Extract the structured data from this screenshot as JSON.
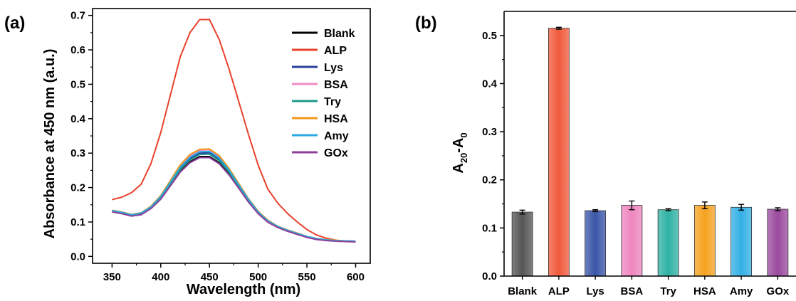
{
  "chart_data": [
    {
      "type": "line",
      "panel_label": "(a)",
      "xlabel": "Wavelength (nm)",
      "ylabel": "Absorbance at 450 nm (a.u.)",
      "xlim": [
        330,
        615
      ],
      "ylim": [
        -0.02,
        0.72
      ],
      "xticks": [
        350,
        400,
        450,
        500,
        550,
        600
      ],
      "yticks": [
        0.0,
        0.1,
        0.2,
        0.3,
        0.4,
        0.5,
        0.6,
        0.7
      ],
      "xtick_labels": [
        "350",
        "400",
        "450",
        "500",
        "550",
        "600"
      ],
      "ytick_labels": [
        "0.0",
        "0.1",
        "0.2",
        "0.3",
        "0.4",
        "0.5",
        "0.6",
        "0.7"
      ],
      "legend_position": "top-right",
      "x": [
        350,
        360,
        370,
        380,
        390,
        400,
        410,
        420,
        430,
        440,
        450,
        460,
        470,
        480,
        490,
        500,
        510,
        520,
        530,
        540,
        550,
        560,
        570,
        580,
        590,
        600
      ],
      "series": [
        {
          "name": "Blank",
          "color": "#000000",
          "values": [
            0.13,
            0.125,
            0.118,
            0.122,
            0.14,
            0.168,
            0.208,
            0.248,
            0.275,
            0.29,
            0.29,
            0.272,
            0.24,
            0.2,
            0.16,
            0.125,
            0.1,
            0.085,
            0.074,
            0.065,
            0.056,
            0.05,
            0.047,
            0.045,
            0.044,
            0.043
          ]
        },
        {
          "name": "ALP",
          "color": "#e8412b",
          "values": [
            0.165,
            0.172,
            0.185,
            0.21,
            0.27,
            0.36,
            0.47,
            0.58,
            0.65,
            0.688,
            0.688,
            0.63,
            0.545,
            0.45,
            0.355,
            0.265,
            0.195,
            0.155,
            0.125,
            0.1,
            0.078,
            0.062,
            0.053,
            0.047,
            0.044,
            0.043
          ]
        },
        {
          "name": "Lys",
          "color": "#2a3f9e",
          "values": [
            0.132,
            0.127,
            0.12,
            0.125,
            0.143,
            0.172,
            0.214,
            0.256,
            0.284,
            0.3,
            0.301,
            0.282,
            0.248,
            0.206,
            0.164,
            0.128,
            0.102,
            0.086,
            0.075,
            0.066,
            0.057,
            0.051,
            0.048,
            0.046,
            0.045,
            0.044
          ]
        },
        {
          "name": "BSA",
          "color": "#f08cc4",
          "values": [
            0.133,
            0.128,
            0.121,
            0.126,
            0.145,
            0.175,
            0.218,
            0.262,
            0.292,
            0.308,
            0.31,
            0.29,
            0.254,
            0.21,
            0.167,
            0.13,
            0.104,
            0.087,
            0.076,
            0.067,
            0.058,
            0.052,
            0.048,
            0.046,
            0.045,
            0.044
          ]
        },
        {
          "name": "Try",
          "color": "#1e9a8a",
          "values": [
            0.131,
            0.126,
            0.119,
            0.124,
            0.142,
            0.17,
            0.211,
            0.252,
            0.28,
            0.296,
            0.297,
            0.278,
            0.245,
            0.204,
            0.162,
            0.127,
            0.101,
            0.086,
            0.075,
            0.066,
            0.057,
            0.051,
            0.048,
            0.046,
            0.045,
            0.044
          ]
        },
        {
          "name": "HSA",
          "color": "#f3961c",
          "values": [
            0.134,
            0.129,
            0.122,
            0.127,
            0.146,
            0.177,
            0.221,
            0.266,
            0.296,
            0.311,
            0.312,
            0.293,
            0.256,
            0.212,
            0.168,
            0.131,
            0.105,
            0.088,
            0.077,
            0.068,
            0.058,
            0.052,
            0.049,
            0.047,
            0.045,
            0.044
          ]
        },
        {
          "name": "Amy",
          "color": "#29a9e1",
          "values": [
            0.133,
            0.128,
            0.121,
            0.126,
            0.144,
            0.174,
            0.216,
            0.259,
            0.288,
            0.304,
            0.305,
            0.286,
            0.251,
            0.208,
            0.166,
            0.129,
            0.103,
            0.087,
            0.076,
            0.067,
            0.058,
            0.052,
            0.048,
            0.046,
            0.045,
            0.044
          ]
        },
        {
          "name": "GOx",
          "color": "#8e3f98",
          "values": [
            0.129,
            0.124,
            0.117,
            0.121,
            0.139,
            0.166,
            0.205,
            0.245,
            0.272,
            0.287,
            0.287,
            0.269,
            0.237,
            0.198,
            0.158,
            0.124,
            0.099,
            0.084,
            0.073,
            0.064,
            0.055,
            0.049,
            0.046,
            0.044,
            0.043,
            0.042
          ]
        }
      ]
    },
    {
      "type": "bar",
      "panel_label": "(b)",
      "ylabel_main": "A",
      "ylabel_sub1": "20",
      "ylabel_mid": "-A",
      "ylabel_sub2": "0",
      "ylim": [
        0.0,
        0.55
      ],
      "yticks": [
        0.0,
        0.1,
        0.2,
        0.3,
        0.4,
        0.5
      ],
      "ytick_labels": [
        "0.0",
        "0.1",
        "0.2",
        "0.3",
        "0.4",
        "0.5"
      ],
      "categories": [
        "Blank",
        "ALP",
        "Lys",
        "BSA",
        "Try",
        "HSA",
        "Amy",
        "GOx"
      ],
      "values": [
        0.133,
        0.515,
        0.136,
        0.147,
        0.138,
        0.147,
        0.143,
        0.139
      ],
      "errors": [
        0.004,
        0.002,
        0.002,
        0.009,
        0.002,
        0.007,
        0.006,
        0.003
      ],
      "colors": [
        "#555555",
        "#f05a3c",
        "#3b56a8",
        "#ee86bf",
        "#2fb2a4",
        "#f5a21f",
        "#33b0e6",
        "#9b4a9f"
      ]
    }
  ]
}
